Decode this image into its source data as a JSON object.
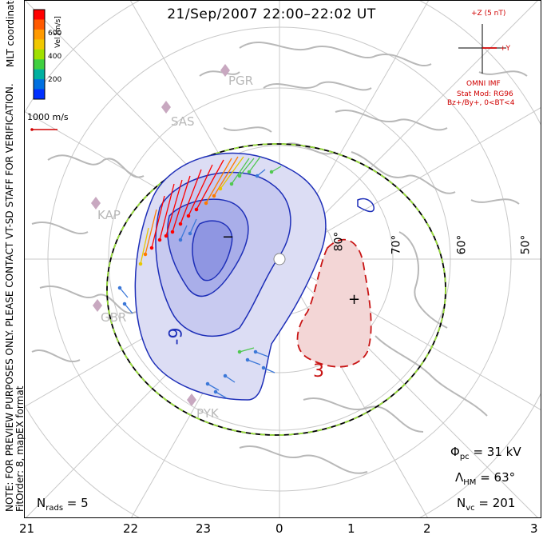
{
  "title": "21/Sep/2007 22:00–22:02 UT",
  "note_lines": [
    "NOTE: FOR PREVIEW PURPOSES ONLY. PLEASE CONTACT VT-SD STAFF FOR VERIFICATION.",
    "FitOrder: 8, mapEX format"
  ],
  "coord_label": "MLT coordinates",
  "colorbar": {
    "label": "Vel [m/s]",
    "ticks": [
      "600",
      "400",
      "200"
    ],
    "colors": [
      "#ff0000",
      "#ff5a00",
      "#ff9a00",
      "#f0c800",
      "#a0e000",
      "#40d040",
      "#00b0a0",
      "#0070e0",
      "#0030ff"
    ]
  },
  "scale_vector": "1000 m/s",
  "imf": {
    "axis_z": "+Z (5 nT)",
    "axis_y": "+Y",
    "source": "OMNI IMF",
    "model": "Stat Mod: RG96",
    "condition": "Bz+/By+, 0<BT<4"
  },
  "stations": [
    "PGR",
    "SAS",
    "KAP",
    "GBR",
    "PYK"
  ],
  "lat_labels": [
    "80°",
    "70°",
    "60°",
    "50°"
  ],
  "mlt_labels": [
    "21",
    "22",
    "23",
    "0",
    "1",
    "2",
    "3"
  ],
  "contour_labels": [
    "-9",
    "3"
  ],
  "potential_marks": {
    "min": "−",
    "max": "+"
  },
  "stats": {
    "phi_pc": "31 kV",
    "lambda_hm": "63°",
    "n_vc": "201",
    "n_rads": "5"
  },
  "colors": {
    "contour_neg": "#1e2fb8",
    "contour_pos": "#c81414",
    "fill_neg": "#b4b8ec",
    "fill_pos": "#f3d6d6",
    "land": "#b8b8b8",
    "grid": "#c8c8c8",
    "hmb_dash": "#9be03c",
    "imf_red": "#d00000"
  }
}
